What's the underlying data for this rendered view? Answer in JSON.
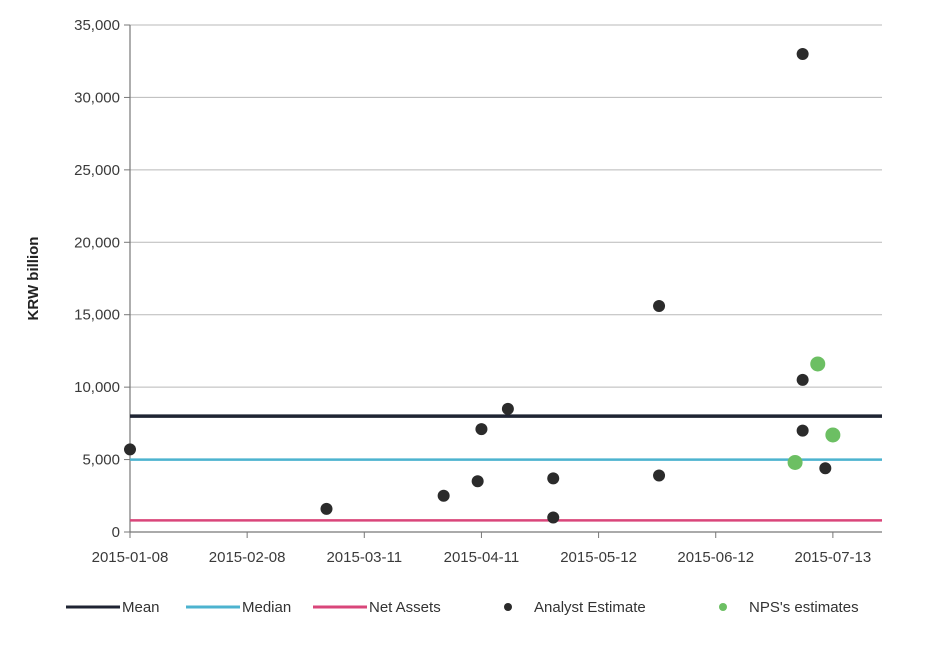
{
  "chart_data": {
    "type": "scatter",
    "title": "",
    "xlabel": "",
    "ylabel": "KRW billion",
    "ylim": [
      0,
      35000
    ],
    "xlim": [
      "2015-01-08",
      "2015-07-26"
    ],
    "y_ticks": [
      0,
      5000,
      10000,
      15000,
      20000,
      25000,
      30000,
      35000
    ],
    "y_tick_labels": [
      "0",
      "5,000",
      "10,000",
      "15,000",
      "20,000",
      "25,000",
      "30,000",
      "35,000"
    ],
    "x_ticks": [
      "2015-01-08",
      "2015-02-08",
      "2015-03-11",
      "2015-04-11",
      "2015-05-12",
      "2015-06-12",
      "2015-07-13"
    ],
    "grid": "horizontal",
    "legend_position": "bottom",
    "reference_lines": [
      {
        "name": "Mean",
        "y": 8000,
        "color": "#1f2433"
      },
      {
        "name": "Median",
        "y": 5000,
        "color": "#4cb3cf"
      },
      {
        "name": "Net Assets",
        "y": 800,
        "color": "#d9467a"
      }
    ],
    "series": [
      {
        "name": "Analyst Estimate",
        "color": "#2b2b2b",
        "points": [
          {
            "x": "2015-01-08",
            "y": 5700
          },
          {
            "x": "2015-03-01",
            "y": 1600
          },
          {
            "x": "2015-04-01",
            "y": 2500
          },
          {
            "x": "2015-04-10",
            "y": 3500
          },
          {
            "x": "2015-04-11",
            "y": 7100
          },
          {
            "x": "2015-04-18",
            "y": 8500
          },
          {
            "x": "2015-04-30",
            "y": 3700
          },
          {
            "x": "2015-04-30",
            "y": 1000
          },
          {
            "x": "2015-05-28",
            "y": 15600
          },
          {
            "x": "2015-05-28",
            "y": 3900
          },
          {
            "x": "2015-07-05",
            "y": 33000
          },
          {
            "x": "2015-07-05",
            "y": 10500
          },
          {
            "x": "2015-07-05",
            "y": 7000
          },
          {
            "x": "2015-07-11",
            "y": 4400
          }
        ]
      },
      {
        "name": "NPS's estimates",
        "color": "#6cbf63",
        "points": [
          {
            "x": "2015-07-03",
            "y": 4800
          },
          {
            "x": "2015-07-09",
            "y": 11600
          },
          {
            "x": "2015-07-13",
            "y": 6700
          }
        ]
      }
    ],
    "legend": [
      "Mean",
      "Median",
      "Net Assets",
      "Analyst Estimate",
      "NPS's estimates"
    ]
  }
}
